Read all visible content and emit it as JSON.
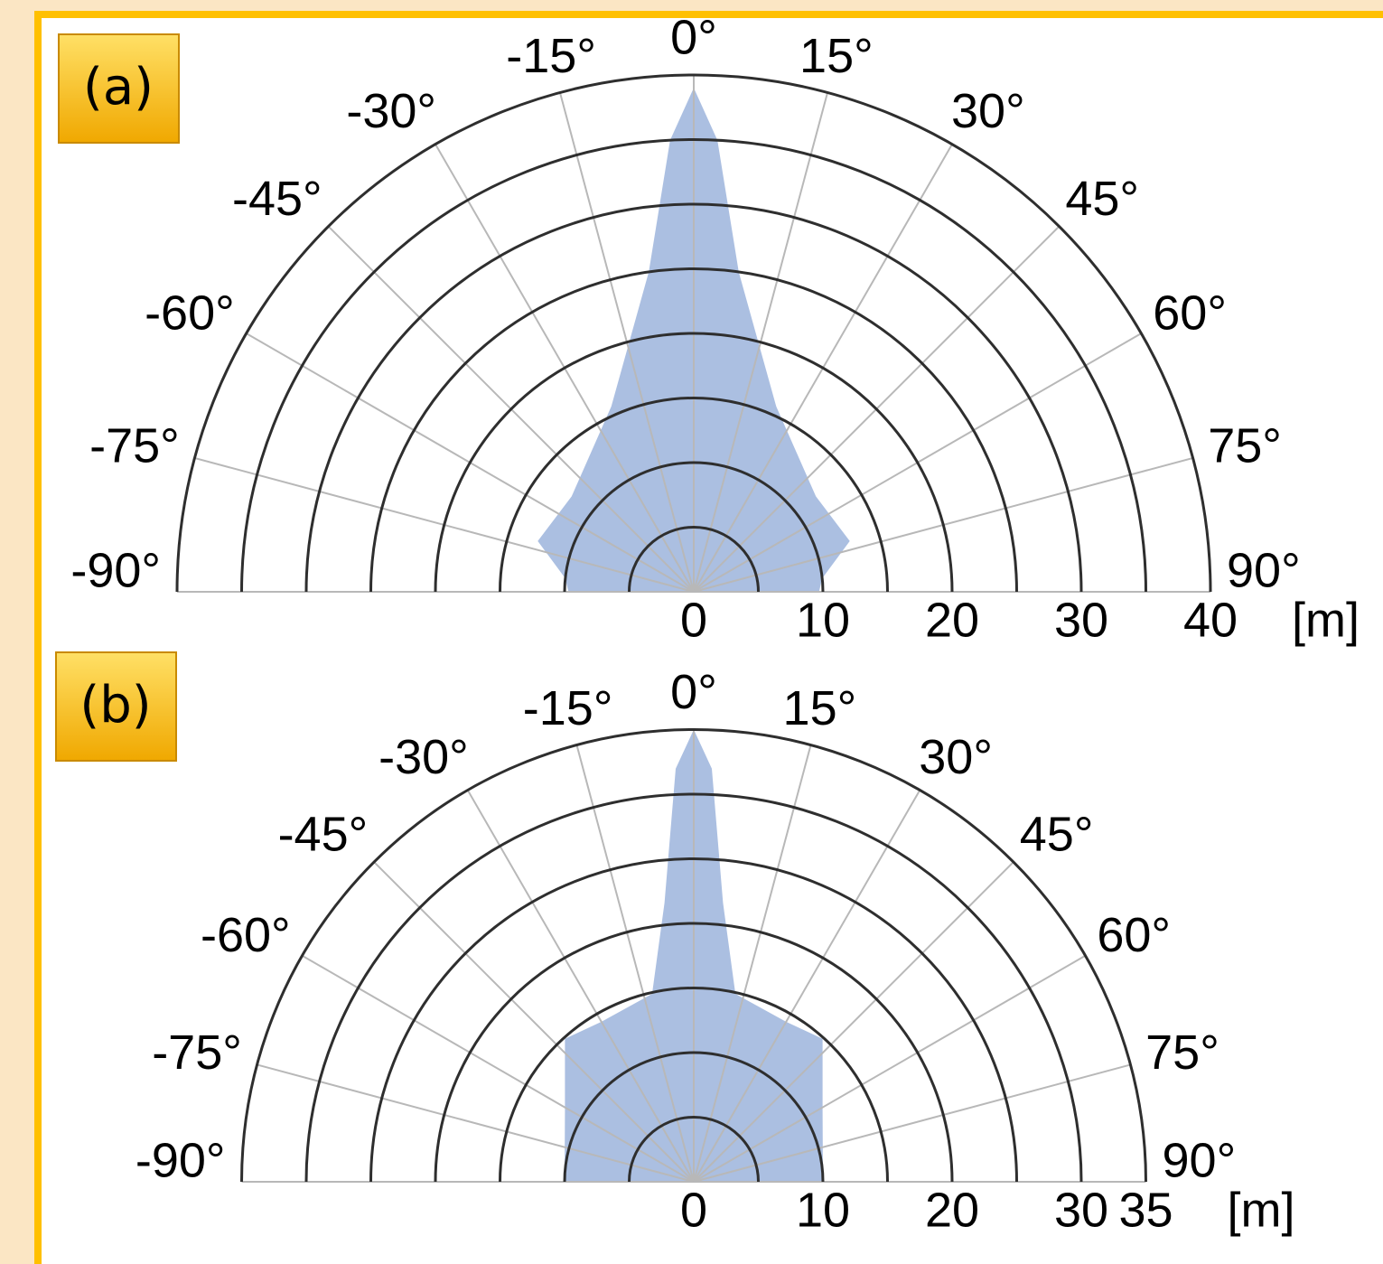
{
  "chart_data": [
    {
      "type": "polar-half",
      "panel_label": "(a)",
      "thetalim": [
        -90,
        90
      ],
      "thetaticks": [
        {
          "value": -90,
          "label": "-90°"
        },
        {
          "value": -75,
          "label": "-75°"
        },
        {
          "value": -60,
          "label": "-60°"
        },
        {
          "value": -45,
          "label": "-45°"
        },
        {
          "value": -30,
          "label": "-30°"
        },
        {
          "value": -15,
          "label": "-15°"
        },
        {
          "value": 0,
          "label": "0°"
        },
        {
          "value": 15,
          "label": "15°"
        },
        {
          "value": 30,
          "label": "30°"
        },
        {
          "value": 45,
          "label": "45°"
        },
        {
          "value": 60,
          "label": "60°"
        },
        {
          "value": 75,
          "label": "75°"
        },
        {
          "value": 90,
          "label": "90°"
        }
      ],
      "rlim": [
        0,
        40
      ],
      "rticks": [
        0,
        10,
        20,
        30,
        40
      ],
      "rminor": [
        5,
        15,
        25,
        35
      ],
      "r_unit": "[m]",
      "color": "#9cb4dc",
      "x": [
        -90,
        -84,
        -72,
        -52,
        -24,
        -8,
        -3,
        0,
        3,
        8,
        24,
        52,
        72,
        84,
        90
      ],
      "values": [
        9.7,
        10,
        12.7,
        12,
        15.7,
        25,
        35,
        39,
        35,
        25,
        15.7,
        12,
        12.7,
        10,
        9.7
      ]
    },
    {
      "type": "polar-half",
      "panel_label": "(b)",
      "thetalim": [
        -90,
        90
      ],
      "thetaticks": [
        {
          "value": -90,
          "label": "-90°"
        },
        {
          "value": -75,
          "label": "-75°"
        },
        {
          "value": -60,
          "label": "-60°"
        },
        {
          "value": -45,
          "label": "-45°"
        },
        {
          "value": -30,
          "label": "-30°"
        },
        {
          "value": -15,
          "label": "-15°"
        },
        {
          "value": 0,
          "label": "0°"
        },
        {
          "value": 15,
          "label": "15°"
        },
        {
          "value": 30,
          "label": "30°"
        },
        {
          "value": 45,
          "label": "45°"
        },
        {
          "value": 60,
          "label": "60°"
        },
        {
          "value": 75,
          "label": "75°"
        },
        {
          "value": 90,
          "label": "90°"
        }
      ],
      "rlim": [
        0,
        35
      ],
      "rticks": [
        0,
        10,
        20,
        30,
        35
      ],
      "rminor": [
        5,
        15,
        25
      ],
      "r_unit": "[m]",
      "color": "#9cb4dc",
      "x": [
        -90,
        -61,
        -42,
        -30,
        -12.5,
        -6,
        -2.5,
        0,
        2.5,
        6,
        12.5,
        30,
        42,
        61,
        90
      ],
      "values": [
        10,
        11.4,
        14.9,
        14.3,
        14.9,
        21.7,
        32,
        35,
        32,
        21.7,
        14.9,
        14.3,
        14.9,
        11.4,
        10
      ]
    }
  ]
}
